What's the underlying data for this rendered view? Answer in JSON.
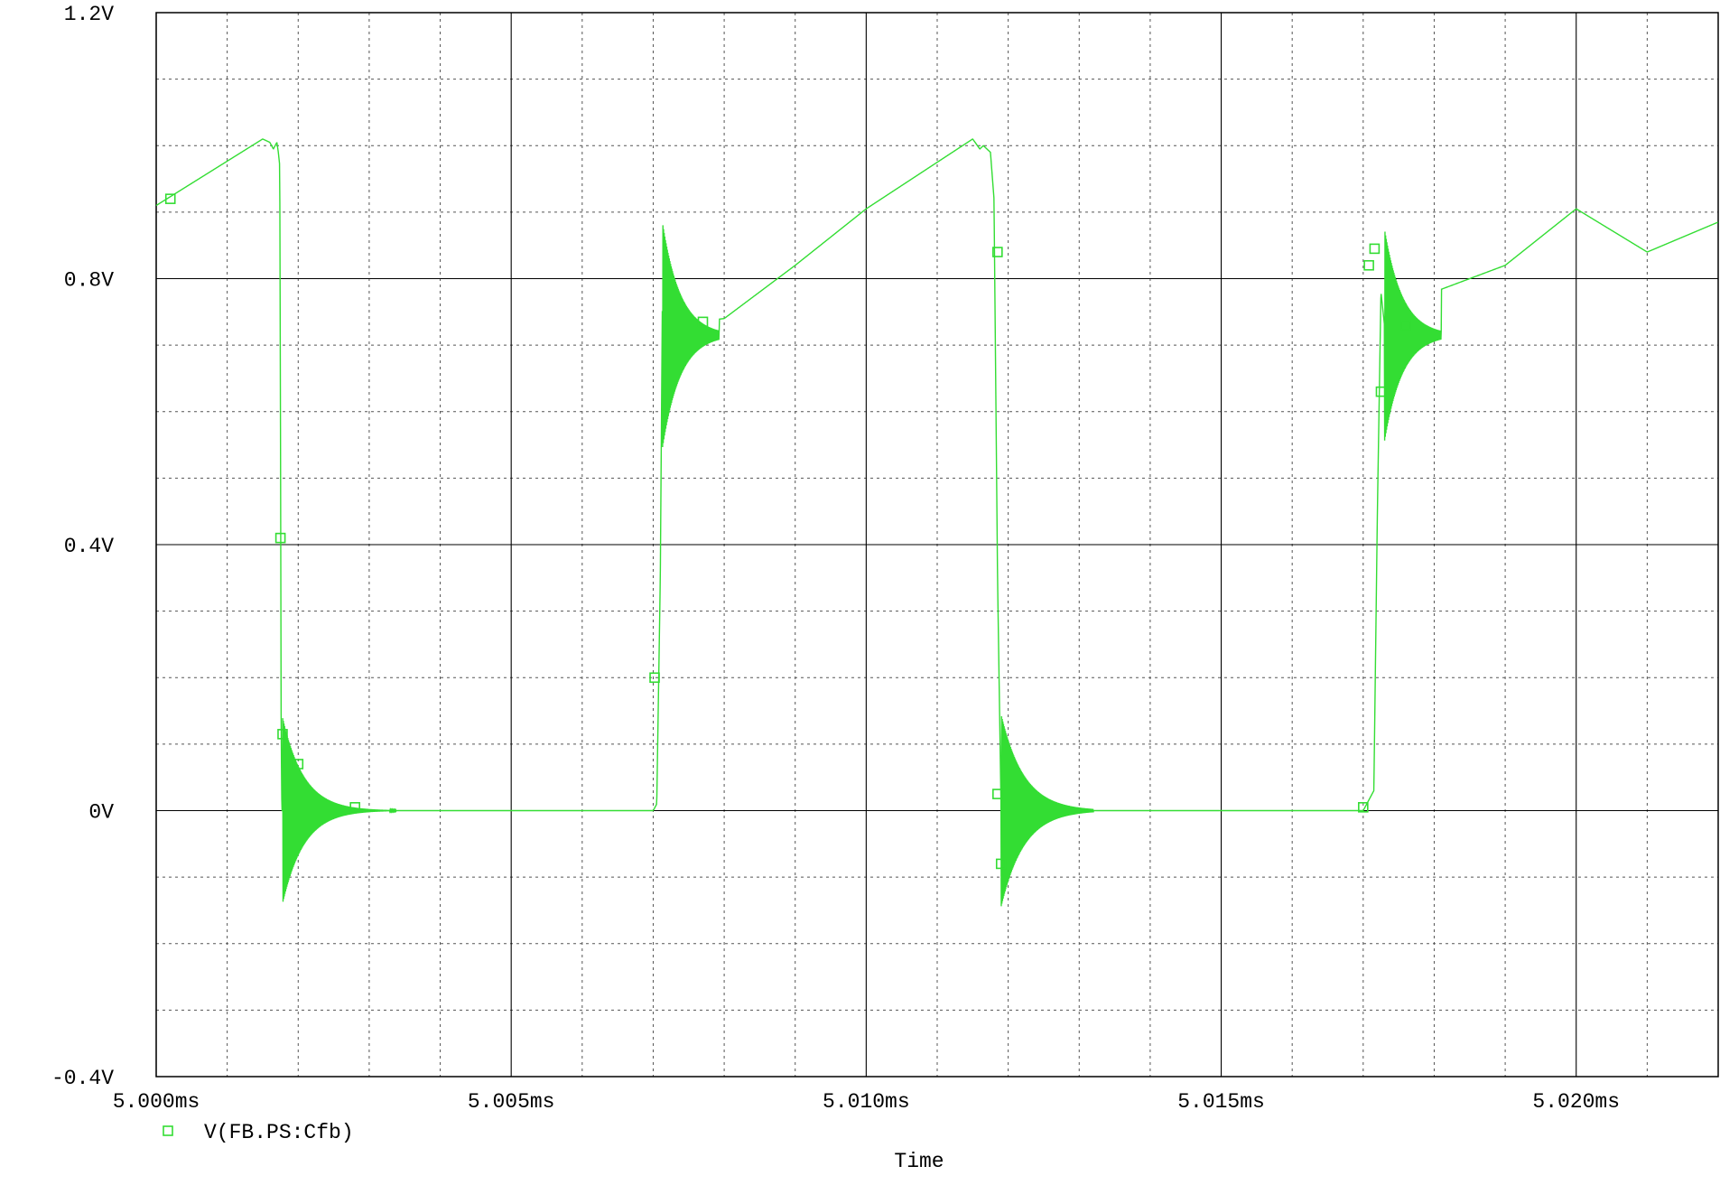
{
  "chart_data": {
    "type": "line",
    "title": "",
    "xlabel": "Time",
    "ylabel": "",
    "x_unit": "ms",
    "xlim": [
      5.0,
      5.022
    ],
    "ylim": [
      -0.4,
      1.2
    ],
    "x_major_ticks": [
      5.0,
      5.005,
      5.01,
      5.015,
      5.02
    ],
    "x_tick_labels": [
      "5.000ms",
      "5.005ms",
      "5.010ms",
      "5.015ms",
      "5.020ms"
    ],
    "x_grid_lines": [
      5.0,
      5.001,
      5.002,
      5.003,
      5.004,
      5.005,
      5.006,
      5.007,
      5.008,
      5.009,
      5.01,
      5.011,
      5.012,
      5.013,
      5.014,
      5.015,
      5.016,
      5.017,
      5.018,
      5.019,
      5.02,
      5.021,
      5.022
    ],
    "y_major_ticks": [
      -0.4,
      0.0,
      0.4,
      0.8,
      1.2
    ],
    "y_tick_labels": [
      "-0.4V",
      "0V",
      "0.4V",
      "0.8V",
      "1.2V"
    ],
    "y_grid_step": 0.1,
    "grid": true,
    "legend_position": "bottom-left",
    "series": [
      {
        "name": "V(FB.PS:Cfb)",
        "color": "#33dd33",
        "marker": "square",
        "x": [
          5.0,
          5.0015,
          5.0016,
          5.00165,
          5.0017,
          5.00172,
          5.00174,
          5.00175,
          5.00176,
          5.00177,
          5.00178,
          5.007,
          5.00705,
          5.0071,
          5.00713,
          5.0072,
          5.008,
          5.009,
          5.01,
          5.011,
          5.0115,
          5.0116,
          5.01165,
          5.01175,
          5.0118,
          5.01185,
          5.0119,
          5.0122,
          5.013,
          5.014,
          5.015,
          5.016,
          5.017,
          5.01715,
          5.0172,
          5.01725,
          5.0173,
          5.018,
          5.019,
          5.02,
          5.021,
          5.022
        ],
        "y": [
          0.91,
          1.01,
          1.005,
          0.995,
          1.005,
          0.99,
          0.97,
          0.6,
          0.12,
          0.0,
          0.0,
          0.0,
          0.01,
          0.35,
          0.78,
          0.73,
          0.74,
          0.82,
          0.905,
          0.975,
          1.01,
          0.995,
          1.0,
          0.99,
          0.92,
          0.35,
          0.0,
          0.0,
          0.0,
          0.0,
          0.0,
          0.0,
          0.0,
          0.03,
          0.45,
          0.78,
          0.73,
          0.78,
          0.82,
          0.905,
          0.84,
          0.885
        ],
        "ringing_events": [
          {
            "t0": 5.00178,
            "base": 0.0,
            "amp": 0.14,
            "decay_ms": 0.0003,
            "duration_ms": 0.0016
          },
          {
            "t0": 5.00713,
            "base": 0.715,
            "amp": 0.17,
            "decay_ms": 0.00025,
            "duration_ms": 0.0008
          },
          {
            "t0": 5.0119,
            "base": 0.0,
            "amp": 0.145,
            "decay_ms": 0.00032,
            "duration_ms": 0.0013
          },
          {
            "t0": 5.0173,
            "base": 0.715,
            "amp": 0.16,
            "decay_ms": 0.00025,
            "duration_ms": 0.0008
          }
        ],
        "markers": [
          {
            "x": 5.0002,
            "y": 0.92
          },
          {
            "x": 5.00175,
            "y": 0.41
          },
          {
            "x": 5.00178,
            "y": 0.115
          },
          {
            "x": 5.002,
            "y": 0.07
          },
          {
            "x": 5.0028,
            "y": 0.005
          },
          {
            "x": 5.00702,
            "y": 0.2
          },
          {
            "x": 5.0077,
            "y": 0.735
          },
          {
            "x": 5.01185,
            "y": 0.84
          },
          {
            "x": 5.01185,
            "y": 0.025
          },
          {
            "x": 5.0119,
            "y": -0.08
          },
          {
            "x": 5.017,
            "y": 0.005
          },
          {
            "x": 5.01708,
            "y": 0.82
          },
          {
            "x": 5.01716,
            "y": 0.845
          },
          {
            "x": 5.01725,
            "y": 0.63
          },
          {
            "x": 5.0176,
            "y": 0.73
          }
        ]
      }
    ]
  }
}
